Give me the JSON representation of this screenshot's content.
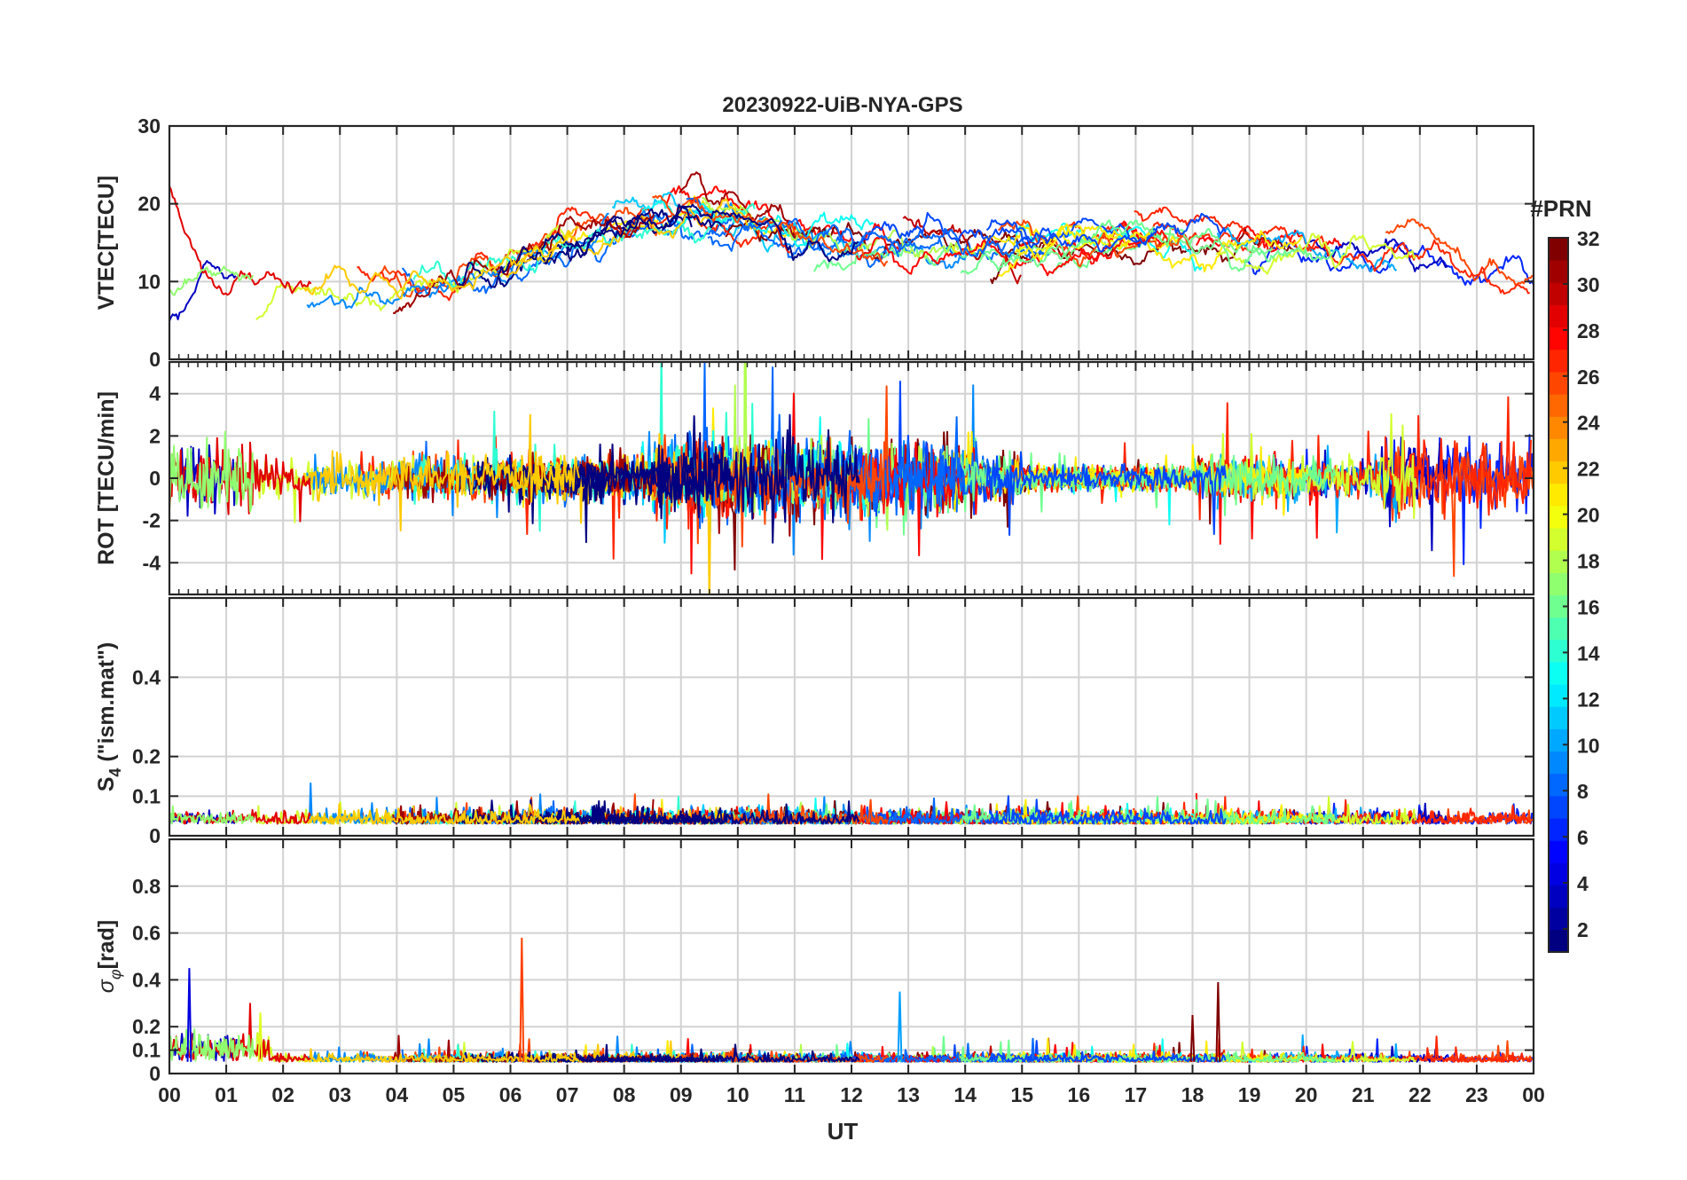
{
  "chart_data": {
    "type": "line",
    "title": "20230922-UiB-NYA-GPS",
    "xlabel": "UT",
    "x_tick_labels": [
      "00",
      "01",
      "02",
      "03",
      "04",
      "05",
      "06",
      "07",
      "08",
      "09",
      "10",
      "11",
      "12",
      "13",
      "14",
      "15",
      "16",
      "17",
      "18",
      "19",
      "20",
      "21",
      "22",
      "23",
      "00"
    ],
    "xlim_hours": [
      0,
      24
    ],
    "grid": true,
    "colorbar": {
      "label": "#PRN",
      "colormap": "jet",
      "range": [
        1,
        32
      ],
      "ticks": [
        2,
        4,
        6,
        8,
        10,
        12,
        14,
        16,
        18,
        20,
        22,
        24,
        26,
        28,
        30,
        32
      ]
    },
    "panels": [
      {
        "id": "vtec",
        "ylabel": "VTEC[TECU]",
        "ylim": [
          0,
          30
        ],
        "yticks": [
          0,
          10,
          20,
          30
        ],
        "baseline_trend_hours": [
          0,
          1,
          2,
          3,
          4,
          5,
          6,
          7,
          8,
          9,
          10,
          11,
          12,
          13,
          14,
          15,
          16,
          17,
          18,
          19,
          20,
          21,
          22,
          23,
          24
        ],
        "baseline_trend_values": [
          11,
          9.5,
          9.5,
          9.5,
          9.5,
          11,
          14,
          17,
          19,
          18,
          16.5,
          15,
          14.5,
          15,
          14.5,
          14,
          15,
          15.5,
          15,
          14.5,
          13.5,
          13,
          12,
          10,
          9
        ],
        "notable_values": {
          "max_approx": 24,
          "min_approx": 4
        }
      },
      {
        "id": "rot",
        "ylabel": "ROT [TECU/min]",
        "ylim": [
          -5.5,
          5.5
        ],
        "yticks": [
          -4,
          -2,
          0,
          2,
          4
        ],
        "typical_amplitude": 0.8,
        "notable_values": {
          "max_approx": 5.3,
          "min_approx": -5.5
        }
      },
      {
        "id": "s4",
        "ylabel_main": "S",
        "ylabel_sub": "4",
        "ylabel_suffix": " (\"ism.mat\")",
        "ylim": [
          0,
          0.6
        ],
        "yticks": [
          0,
          0.1,
          0.2,
          0.4
        ],
        "typical_level": 0.03,
        "notable_values": {
          "max_approx": 0.14
        }
      },
      {
        "id": "sigphi",
        "ylabel_main": "σ",
        "ylabel_sub": "φ",
        "ylabel_suffix": "[rad]",
        "ylim": [
          0,
          1
        ],
        "yticks": [
          0,
          0.1,
          0.2,
          0.4,
          0.6,
          0.8
        ],
        "typical_level": 0.05,
        "spikes": [
          {
            "hour": 0.35,
            "value": 0.45
          },
          {
            "hour": 1.6,
            "value": 0.26
          },
          {
            "hour": 6.2,
            "value": 0.58
          },
          {
            "hour": 12.85,
            "value": 0.35
          },
          {
            "hour": 18.45,
            "value": 0.39
          },
          {
            "hour": 18.0,
            "value": 0.25
          }
        ]
      }
    ]
  }
}
